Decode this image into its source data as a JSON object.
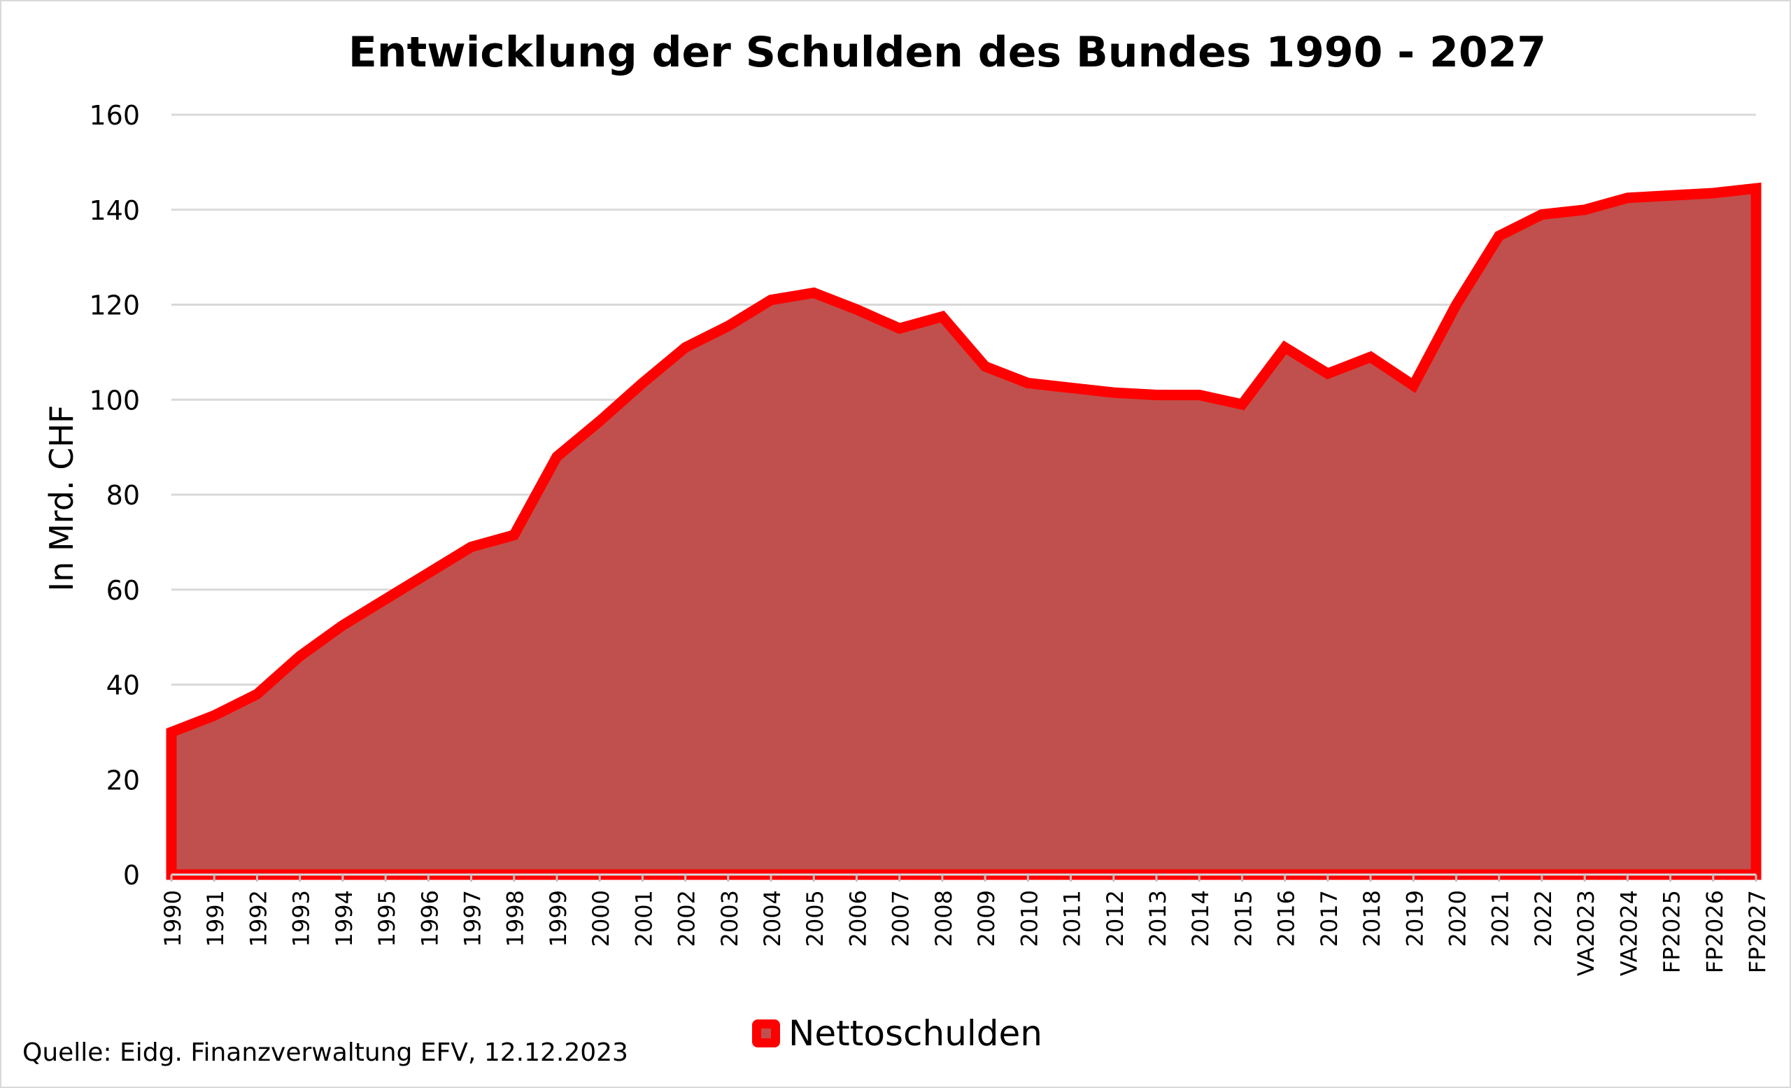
{
  "chart_data": {
    "type": "area",
    "title": "Entwicklung der Schulden des Bundes 1990 - 2027",
    "ylabel": "In Mrd. CHF",
    "xlabel": "",
    "ylim": [
      0,
      160
    ],
    "yticks": [
      0,
      20,
      40,
      60,
      80,
      100,
      120,
      140,
      160
    ],
    "grid": true,
    "legend_position": "bottom",
    "categories": [
      "1990",
      "1991",
      "1992",
      "1993",
      "1994",
      "1995",
      "1996",
      "1997",
      "1998",
      "1999",
      "2000",
      "2001",
      "2002",
      "2003",
      "2004",
      "2005",
      "2006",
      "2007",
      "2008",
      "2009",
      "2010",
      "2011",
      "2012",
      "2013",
      "2014",
      "2015",
      "2016",
      "2017",
      "2018",
      "2019",
      "2020",
      "2021",
      "2022",
      "VA2023",
      "VA2024",
      "FP2025",
      "FP2026",
      "FP2027"
    ],
    "series": [
      {
        "name": "Nettoschulden",
        "fill_color": "#c0504d",
        "line_color": "#ff0000",
        "values": [
          30,
          33.5,
          38,
          46,
          52.5,
          58,
          63.5,
          69,
          71.5,
          88,
          95.5,
          103.5,
          111,
          115.5,
          121,
          122.5,
          119,
          115,
          117.5,
          107,
          103.5,
          102.5,
          101.5,
          101,
          101,
          99,
          111,
          105.5,
          109,
          103,
          120,
          134.5,
          139,
          140,
          142.5,
          143,
          143.5,
          144.5
        ]
      }
    ]
  },
  "legend": {
    "label": "Nettoschulden"
  },
  "footer": {
    "source": "Quelle: Eidg. Finanzverwaltung EFV, 12.12.2023"
  }
}
